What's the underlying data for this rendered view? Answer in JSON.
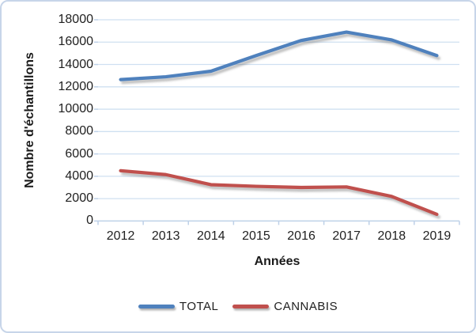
{
  "chart_data": {
    "type": "line",
    "title": "",
    "xlabel": "Années",
    "ylabel": "Nombre d'échantillons",
    "categories": [
      "2012",
      "2013",
      "2014",
      "2015",
      "2016",
      "2017",
      "2018",
      "2019"
    ],
    "series": [
      {
        "name": "TOTAL",
        "color": "#4f81bd",
        "values": [
          12650,
          12900,
          13400,
          14800,
          16150,
          16900,
          16200,
          14800
        ]
      },
      {
        "name": "CANNABIS",
        "color": "#c0504d",
        "values": [
          4500,
          4150,
          3250,
          3100,
          3000,
          3050,
          2200,
          600
        ]
      }
    ],
    "ylim": [
      0,
      18000
    ],
    "ytick_step": 2000,
    "ytick_labels": [
      "0",
      "2000",
      "4000",
      "6000",
      "8000",
      "10000",
      "12000",
      "14000",
      "16000",
      "18000"
    ],
    "grid": true,
    "legend_position": "bottom",
    "gridline_color": "#cfe0f1",
    "axis_color": "#bed1e8",
    "frame_color": "#c7d5e9"
  }
}
